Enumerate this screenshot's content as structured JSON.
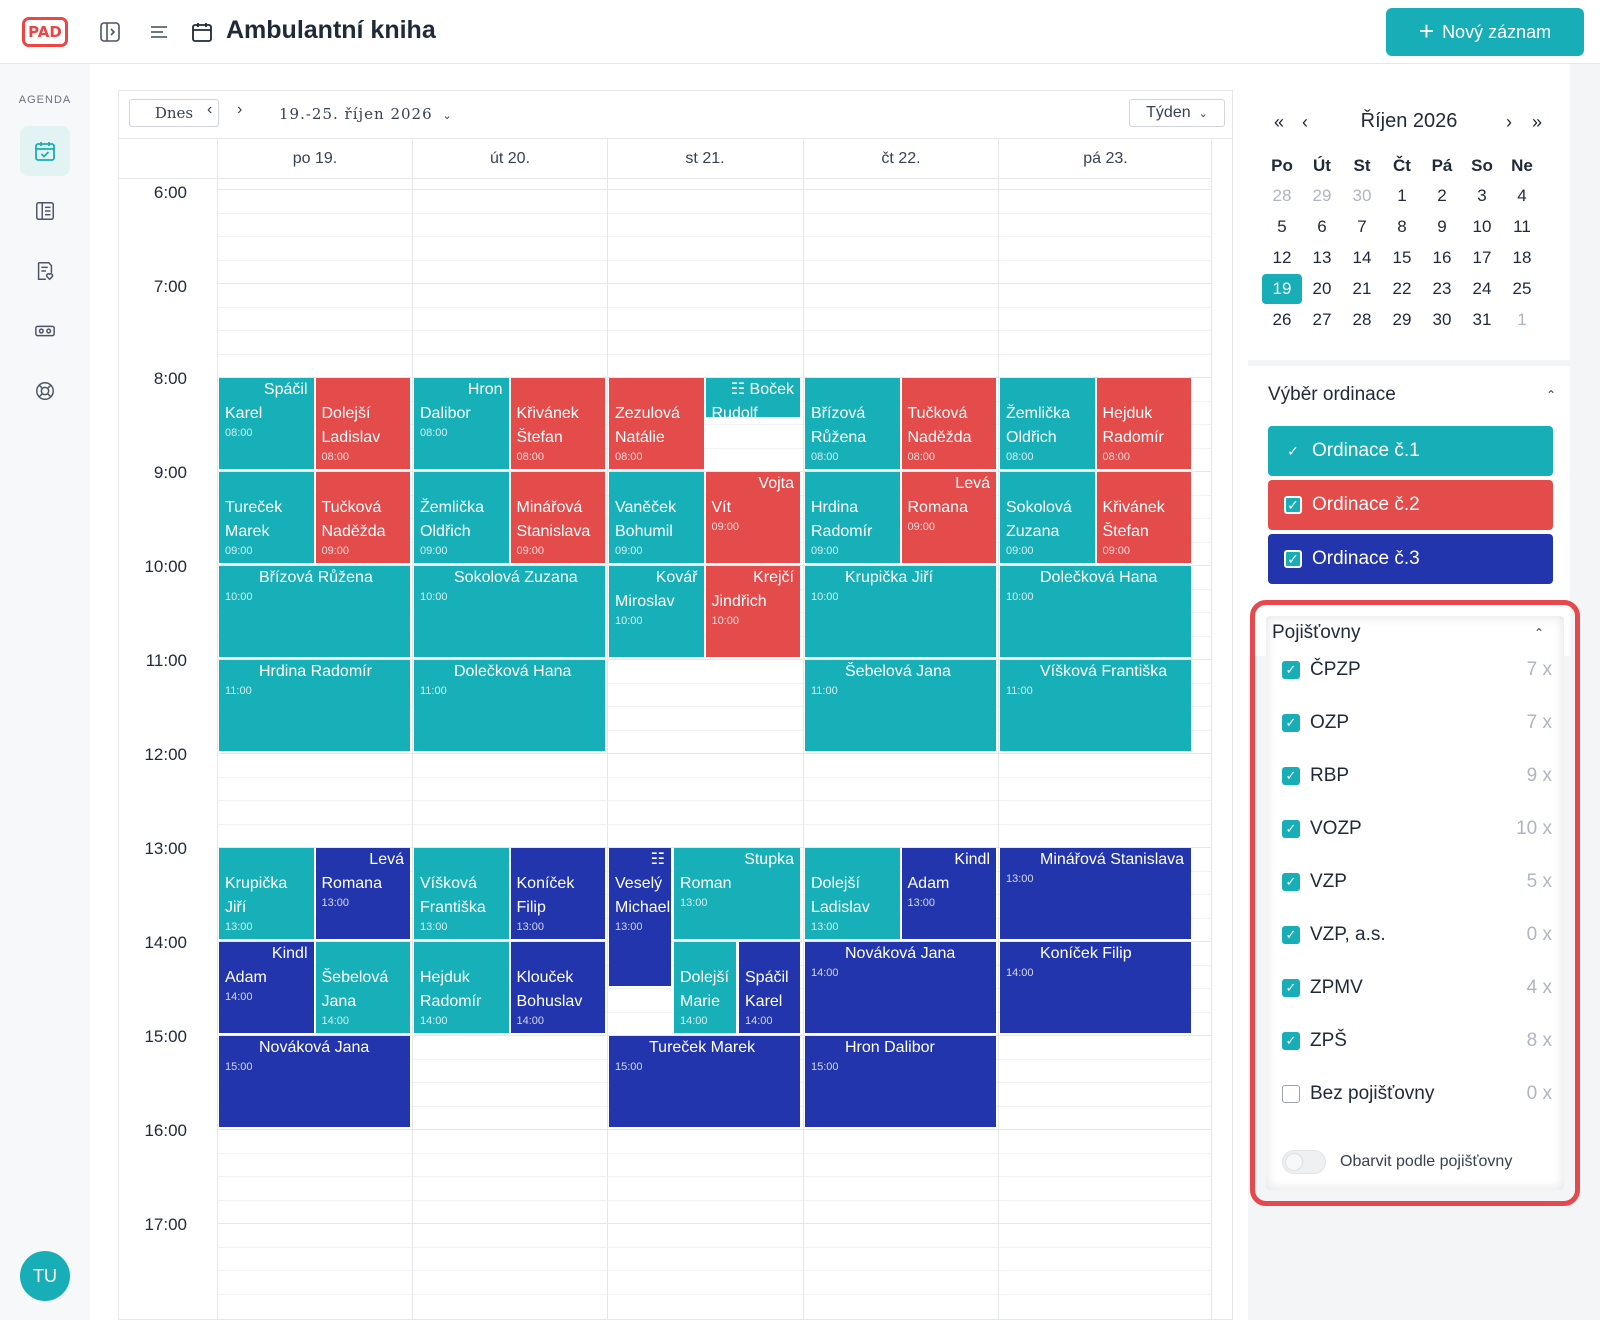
{
  "app": {
    "logo": "PAD",
    "title": "Ambulantní kniha",
    "new_button": "Nový záznam"
  },
  "nav": {
    "section_title": "AGENDA",
    "user_initials": "TU"
  },
  "toolbar": {
    "today": "Dnes",
    "range": "19.-25. říjen 2026",
    "view": "Týden"
  },
  "days": [
    "po 19.",
    "út 20.",
    "st 21.",
    "čt 22.",
    "pá 23."
  ],
  "times": [
    "6:00",
    "7:00",
    "8:00",
    "9:00",
    "10:00",
    "11:00",
    "12:00",
    "13:00",
    "14:00",
    "15:00",
    "16:00",
    "17:00"
  ],
  "colors": {
    "ordinace1": "#17b0b8",
    "ordinace2": "#e44b4b",
    "ordinace3": "#2235ac",
    "accent": "#17aeb8",
    "highlight": "#e5484d"
  },
  "events": [
    {
      "day": 0,
      "half": 0,
      "start": "08:00",
      "dur": 1,
      "color": "c1",
      "line1": "Spáčil",
      "line2": "Karel",
      "time": "08:00"
    },
    {
      "day": 0,
      "half": 1,
      "start": "08:00",
      "dur": 1,
      "color": "c2",
      "line1": "",
      "line2": "Dolejší Ladislav",
      "time": "08:00"
    },
    {
      "day": 1,
      "half": 0,
      "start": "08:00",
      "dur": 1,
      "color": "c1",
      "line1": "Hron",
      "line2": "Dalibor",
      "time": "08:00"
    },
    {
      "day": 1,
      "half": 1,
      "start": "08:00",
      "dur": 1,
      "color": "c2",
      "line1": "",
      "line2": "Křivánek Štefan",
      "time": "08:00"
    },
    {
      "day": 2,
      "half": 0,
      "start": "08:00",
      "dur": 1,
      "color": "c2",
      "line1": "",
      "line2": "Zezulová Natálie",
      "time": "08:00"
    },
    {
      "day": 2,
      "half": 1,
      "start": "08:00",
      "dur": 0.45,
      "color": "c1",
      "line1": "☷ Boček",
      "line2": "Rudolf",
      "time": ""
    },
    {
      "day": 3,
      "half": 0,
      "start": "08:00",
      "dur": 1,
      "color": "c1",
      "line1": "",
      "line2": "Břízová Růžena",
      "time": "08:00"
    },
    {
      "day": 3,
      "half": 1,
      "start": "08:00",
      "dur": 1,
      "color": "c2",
      "line1": "",
      "line2": "Tučková Naděžda",
      "time": "08:00"
    },
    {
      "day": 4,
      "half": 0,
      "start": "08:00",
      "dur": 1,
      "color": "c1",
      "line1": "",
      "line2": "Žemlička Oldřich",
      "time": "08:00"
    },
    {
      "day": 4,
      "half": 1,
      "start": "08:00",
      "dur": 1,
      "color": "c2",
      "line1": "",
      "line2": "Hejduk Radomír",
      "time": "08:00"
    },
    {
      "day": 0,
      "half": 0,
      "start": "09:00",
      "dur": 1,
      "color": "c1",
      "line1": "",
      "line2": "Tureček Marek",
      "time": "09:00"
    },
    {
      "day": 0,
      "half": 1,
      "start": "09:00",
      "dur": 1,
      "color": "c2",
      "line1": "",
      "line2": "Tučková Naděžda",
      "time": "09:00"
    },
    {
      "day": 1,
      "half": 0,
      "start": "09:00",
      "dur": 1,
      "color": "c1",
      "line1": "",
      "line2": "Žemlička Oldřich",
      "time": "09:00"
    },
    {
      "day": 1,
      "half": 1,
      "start": "09:00",
      "dur": 1,
      "color": "c2",
      "line1": "",
      "line2": "Minářová Stanislava",
      "time": "09:00"
    },
    {
      "day": 2,
      "half": 0,
      "start": "09:00",
      "dur": 1,
      "color": "c1",
      "line1": "",
      "line2": "Vaněček Bohumil",
      "time": "09:00"
    },
    {
      "day": 2,
      "half": 1,
      "start": "09:00",
      "dur": 1,
      "color": "c2",
      "line1": "Vojta",
      "line2": "Vít",
      "time": "09:00"
    },
    {
      "day": 3,
      "half": 0,
      "start": "09:00",
      "dur": 1,
      "color": "c1",
      "line1": "",
      "line2": "Hrdina Radomír",
      "time": "09:00"
    },
    {
      "day": 3,
      "half": 1,
      "start": "09:00",
      "dur": 1,
      "color": "c2",
      "line1": "Levá",
      "line2": "Romana",
      "time": "09:00"
    },
    {
      "day": 4,
      "half": 0,
      "start": "09:00",
      "dur": 1,
      "color": "c1",
      "line1": "",
      "line2": "Sokolová Zuzana",
      "time": "09:00"
    },
    {
      "day": 4,
      "half": 1,
      "start": "09:00",
      "dur": 1,
      "color": "c2",
      "line1": "",
      "line2": "Křivánek Štefan",
      "time": "09:00"
    },
    {
      "day": 0,
      "half": -1,
      "start": "10:00",
      "dur": 1,
      "color": "c1",
      "line1": "Břízová Růžena",
      "line2": "",
      "time": "10:00"
    },
    {
      "day": 1,
      "half": -1,
      "start": "10:00",
      "dur": 1,
      "color": "c1",
      "line1": "Sokolová Zuzana",
      "line2": "",
      "time": "10:00"
    },
    {
      "day": 2,
      "half": 0,
      "start": "10:00",
      "dur": 1,
      "color": "c1",
      "line1": "Kovář",
      "line2": "Miroslav",
      "time": "10:00"
    },
    {
      "day": 2,
      "half": 1,
      "start": "10:00",
      "dur": 1,
      "color": "c2",
      "line1": "Krejčí",
      "line2": "Jindřich",
      "time": "10:00"
    },
    {
      "day": 3,
      "half": -1,
      "start": "10:00",
      "dur": 1,
      "color": "c1",
      "line1": "Krupička Jiří",
      "line2": "",
      "time": "10:00"
    },
    {
      "day": 4,
      "half": -1,
      "start": "10:00",
      "dur": 1,
      "color": "c1",
      "line1": "Dolečková Hana",
      "line2": "",
      "time": "10:00"
    },
    {
      "day": 0,
      "half": -1,
      "start": "11:00",
      "dur": 1,
      "color": "c1",
      "line1": "Hrdina Radomír",
      "line2": "",
      "time": "11:00"
    },
    {
      "day": 1,
      "half": -1,
      "start": "11:00",
      "dur": 1,
      "color": "c1",
      "line1": "Dolečková Hana",
      "line2": "",
      "time": "11:00"
    },
    {
      "day": 3,
      "half": -1,
      "start": "11:00",
      "dur": 1,
      "color": "c1",
      "line1": "Šebelová Jana",
      "line2": "",
      "time": "11:00"
    },
    {
      "day": 4,
      "half": -1,
      "start": "11:00",
      "dur": 1,
      "color": "c1",
      "line1": "Víšková Františka",
      "line2": "",
      "time": "11:00"
    },
    {
      "day": 0,
      "half": 0,
      "start": "13:00",
      "dur": 1,
      "color": "c1",
      "line1": "",
      "line2": "Krupička Jiří",
      "time": "13:00"
    },
    {
      "day": 0,
      "half": 1,
      "start": "13:00",
      "dur": 1,
      "color": "c3",
      "line1": "Levá",
      "line2": "Romana",
      "time": "13:00"
    },
    {
      "day": 1,
      "half": 0,
      "start": "13:00",
      "dur": 1,
      "color": "c1",
      "line1": "",
      "line2": "Víšková Františka",
      "time": "13:00"
    },
    {
      "day": 1,
      "half": 1,
      "start": "13:00",
      "dur": 1,
      "color": "c3",
      "line1": "",
      "line2": "Koníček Filip",
      "time": "13:00"
    },
    {
      "day": 2,
      "half": 0,
      "start": "13:00",
      "dur": 1.5,
      "color": "c3",
      "line1": "☷",
      "line2": "Veselý Michael",
      "time": "13:00",
      "w": "third0"
    },
    {
      "day": 2,
      "half": 1,
      "start": "13:00",
      "dur": 1,
      "color": "c1",
      "line1": "Stupka",
      "line2": "Roman",
      "time": "13:00",
      "w": "third12"
    },
    {
      "day": 3,
      "half": 0,
      "start": "13:00",
      "dur": 1,
      "color": "c1",
      "line1": "",
      "line2": "Dolejší Ladislav",
      "time": "13:00"
    },
    {
      "day": 3,
      "half": 1,
      "start": "13:00",
      "dur": 1,
      "color": "c3",
      "line1": "Kindl",
      "line2": "Adam",
      "time": "13:00"
    },
    {
      "day": 4,
      "half": -1,
      "start": "13:00",
      "dur": 1,
      "color": "c3",
      "line1": "Minářová Stanislava",
      "line2": "",
      "time": "13:00"
    },
    {
      "day": 0,
      "half": 0,
      "start": "14:00",
      "dur": 1,
      "color": "c3",
      "line1": "Kindl",
      "line2": "Adam",
      "time": "14:00"
    },
    {
      "day": 0,
      "half": 1,
      "start": "14:00",
      "dur": 1,
      "color": "c1",
      "line1": "",
      "line2": "Šebelová Jana",
      "time": "14:00"
    },
    {
      "day": 1,
      "half": 0,
      "start": "14:00",
      "dur": 1,
      "color": "c1",
      "line1": "",
      "line2": "Hejduk Radomír",
      "time": "14:00"
    },
    {
      "day": 1,
      "half": 1,
      "start": "14:00",
      "dur": 1,
      "color": "c3",
      "line1": "",
      "line2": "Klouček Bohuslav",
      "time": "14:00"
    },
    {
      "day": 2,
      "half": 1,
      "start": "14:00",
      "dur": 1,
      "color": "c1",
      "line1": "",
      "line2": "Dolejší Marie",
      "time": "14:00",
      "w": "third1"
    },
    {
      "day": 2,
      "half": 1,
      "start": "14:00",
      "dur": 1,
      "color": "c3",
      "line1": "",
      "line2": "Spáčil Karel",
      "time": "14:00",
      "w": "third2"
    },
    {
      "day": 3,
      "half": -1,
      "start": "14:00",
      "dur": 1,
      "color": "c3",
      "line1": "Nováková Jana",
      "line2": "",
      "time": "14:00"
    },
    {
      "day": 4,
      "half": -1,
      "start": "14:00",
      "dur": 1,
      "color": "c3",
      "line1": "Koníček Filip",
      "line2": "",
      "time": "14:00"
    },
    {
      "day": 0,
      "half": -1,
      "start": "15:00",
      "dur": 1,
      "color": "c3",
      "line1": "Nováková Jana",
      "line2": "",
      "time": "15:00"
    },
    {
      "day": 2,
      "half": -1,
      "start": "15:00",
      "dur": 1,
      "color": "c3",
      "line1": "Tureček Marek",
      "line2": "",
      "time": "15:00"
    },
    {
      "day": 3,
      "half": -1,
      "start": "15:00",
      "dur": 1,
      "color": "c3",
      "line1": "Hron Dalibor",
      "line2": "",
      "time": "15:00"
    }
  ],
  "mini_calendar": {
    "title": "Říjen 2026",
    "dow": [
      "Po",
      "Út",
      "St",
      "Čt",
      "Pá",
      "So",
      "Ne"
    ],
    "weeks": [
      [
        {
          "d": "28",
          "m": true
        },
        {
          "d": "29",
          "m": true
        },
        {
          "d": "30",
          "m": true
        },
        {
          "d": "1"
        },
        {
          "d": "2"
        },
        {
          "d": "3"
        },
        {
          "d": "4"
        }
      ],
      [
        {
          "d": "5"
        },
        {
          "d": "6"
        },
        {
          "d": "7"
        },
        {
          "d": "8"
        },
        {
          "d": "9"
        },
        {
          "d": "10"
        },
        {
          "d": "11"
        }
      ],
      [
        {
          "d": "12"
        },
        {
          "d": "13"
        },
        {
          "d": "14"
        },
        {
          "d": "15"
        },
        {
          "d": "16"
        },
        {
          "d": "17"
        },
        {
          "d": "18"
        }
      ],
      [
        {
          "d": "19",
          "t": true
        },
        {
          "d": "20"
        },
        {
          "d": "21"
        },
        {
          "d": "22"
        },
        {
          "d": "23"
        },
        {
          "d": "24"
        },
        {
          "d": "25"
        }
      ],
      [
        {
          "d": "26"
        },
        {
          "d": "27"
        },
        {
          "d": "28"
        },
        {
          "d": "29"
        },
        {
          "d": "30"
        },
        {
          "d": "31"
        },
        {
          "d": "1",
          "m": true
        }
      ]
    ]
  },
  "ordinace": {
    "title": "Výběr ordinace",
    "items": [
      "Ordinace č.1",
      "Ordinace č.2",
      "Ordinace č.3"
    ]
  },
  "insurance": {
    "title": "Pojišťovny",
    "items": [
      {
        "name": "ČPZP",
        "count": "7 x",
        "checked": true
      },
      {
        "name": "OZP",
        "count": "7 x",
        "checked": true
      },
      {
        "name": "RBP",
        "count": "9 x",
        "checked": true
      },
      {
        "name": "VOZP",
        "count": "10 x",
        "checked": true
      },
      {
        "name": "VZP",
        "count": "5 x",
        "checked": true
      },
      {
        "name": "VZP, a.s.",
        "count": "0 x",
        "checked": true
      },
      {
        "name": "ZPMV",
        "count": "4 x",
        "checked": true
      },
      {
        "name": "ZPŠ",
        "count": "8 x",
        "checked": true
      },
      {
        "name": "Bez pojišťovny",
        "count": "0 x",
        "checked": false
      }
    ],
    "toggle_label": "Obarvit podle pojišťovny"
  }
}
